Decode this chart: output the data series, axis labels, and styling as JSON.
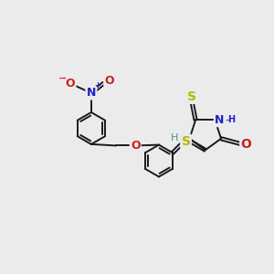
{
  "background_color": "#ebebeb",
  "figsize": [
    3.0,
    3.0
  ],
  "dpi": 100,
  "bond_color": "#1a1a1a",
  "bond_width": 1.4,
  "font_size_atom": 9,
  "font_size_small": 7,
  "colors": {
    "S": "#b8b800",
    "N": "#2020cc",
    "O": "#cc2020",
    "H_teal": "#4a9090",
    "C": "#1a1a1a"
  },
  "xlim": [
    -0.5,
    3.2
  ],
  "ylim": [
    -0.2,
    3.2
  ]
}
